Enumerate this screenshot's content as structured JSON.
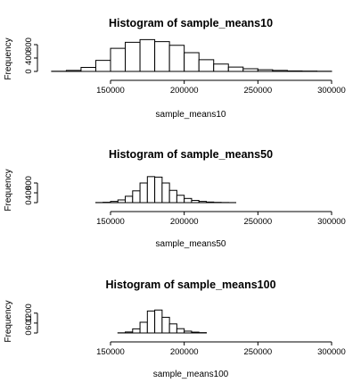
{
  "chart_data": [
    {
      "type": "bar",
      "title": "Histogram of sample_means10",
      "xlabel": "sample_means10",
      "ylabel": "Frequency",
      "xlim": [
        110000,
        300000
      ],
      "ylim": [
        0,
        950
      ],
      "x_ticks": [
        150000,
        200000,
        250000,
        300000
      ],
      "x_tick_labels": [
        "150000",
        "200000",
        "250000",
        "300000"
      ],
      "y_ticks": [
        0,
        400,
        800
      ],
      "y_tick_labels": [
        "0",
        "400",
        "800"
      ],
      "bin_edges": [
        110000,
        120000,
        130000,
        140000,
        150000,
        160000,
        170000,
        180000,
        190000,
        200000,
        210000,
        220000,
        230000,
        240000,
        250000,
        260000,
        270000,
        280000,
        290000,
        300000
      ],
      "values": [
        5,
        30,
        120,
        330,
        690,
        870,
        950,
        890,
        780,
        560,
        350,
        220,
        130,
        80,
        50,
        30,
        15,
        10,
        5
      ]
    },
    {
      "type": "bar",
      "title": "Histogram of sample_means50",
      "xlabel": "sample_means50",
      "ylabel": "Frequency",
      "xlim": [
        140000,
        300000
      ],
      "ylim": [
        0,
        1100
      ],
      "x_ticks": [
        150000,
        200000,
        250000,
        300000
      ],
      "x_tick_labels": [
        "150000",
        "200000",
        "250000",
        "300000"
      ],
      "y_ticks": [
        0,
        400,
        800
      ],
      "y_tick_labels": [
        "0",
        "400",
        "800"
      ],
      "bin_edges": [
        140000,
        145000,
        150000,
        155000,
        160000,
        165000,
        170000,
        175000,
        180000,
        185000,
        190000,
        195000,
        200000,
        205000,
        210000,
        215000,
        220000,
        225000,
        230000,
        235000
      ],
      "values": [
        5,
        15,
        50,
        110,
        260,
        480,
        800,
        1060,
        1040,
        800,
        500,
        300,
        170,
        90,
        50,
        25,
        12,
        6,
        3
      ]
    },
    {
      "type": "bar",
      "title": "Histogram of sample_means100",
      "xlabel": "sample_means100",
      "ylabel": "Frequency",
      "xlim": [
        155000,
        215000
      ],
      "ylim": [
        0,
        1450
      ],
      "x_ticks": [
        150000,
        200000,
        250000,
        300000
      ],
      "x_tick_labels": [
        "150000",
        "200000",
        "250000",
        "300000"
      ],
      "y_ticks": [
        0,
        600,
        1200
      ],
      "y_tick_labels": [
        "0",
        "600",
        "1200"
      ],
      "bin_edges": [
        155000,
        160000,
        165000,
        170000,
        175000,
        180000,
        185000,
        190000,
        195000,
        200000,
        205000,
        210000,
        215000
      ],
      "values": [
        10,
        60,
        250,
        650,
        1330,
        1390,
        950,
        550,
        260,
        110,
        50,
        20
      ]
    }
  ]
}
